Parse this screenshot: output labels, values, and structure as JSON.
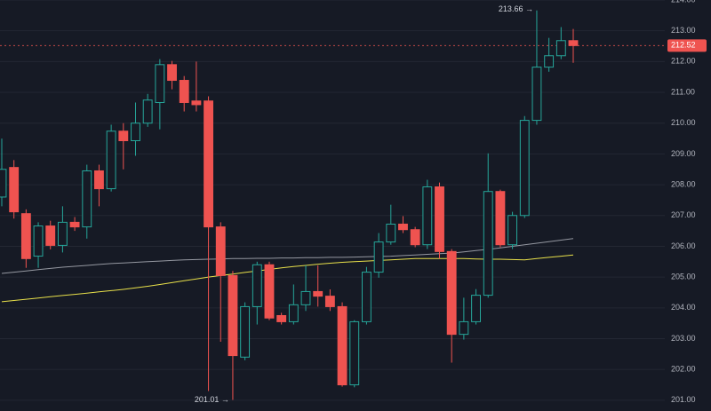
{
  "chart_data": {
    "type": "candlestick",
    "open": [
      207.6,
      208.56,
      207.06,
      205.68,
      206.66,
      206.03,
      206.78,
      206.63,
      208.45,
      207.87,
      209.74,
      209.43,
      210.0,
      210.67,
      211.9,
      211.39,
      210.72,
      210.72,
      206.63,
      205.05,
      202.4,
      204.04,
      205.4,
      203.75,
      203.55,
      204.1,
      204.53,
      204.38,
      204.04,
      201.5,
      203.55,
      205.16,
      206.14,
      206.72,
      206.54,
      206.05,
      207.93,
      205.83,
      203.14,
      203.55,
      204.41,
      207.78,
      206.05,
      207.0,
      210.09,
      211.82,
      212.19,
      212.68
    ],
    "high": [
      209.5,
      208.8,
      207.2,
      206.78,
      206.83,
      207.3,
      206.95,
      208.65,
      208.65,
      209.95,
      210.0,
      210.67,
      210.95,
      212.08,
      212.02,
      211.53,
      212.0,
      210.87,
      206.78,
      205.2,
      204.18,
      205.5,
      205.5,
      203.84,
      204.76,
      205.38,
      205.38,
      204.6,
      204.18,
      203.6,
      205.33,
      206.43,
      207.35,
      206.98,
      206.63,
      208.16,
      208.07,
      205.91,
      204.33,
      204.61,
      209.02,
      207.84,
      207.12,
      210.23,
      213.66,
      212.77,
      213.12,
      213.06
    ],
    "low": [
      207.3,
      206.9,
      205.3,
      205.3,
      205.9,
      205.8,
      206.5,
      206.25,
      207.3,
      207.78,
      208.5,
      208.94,
      209.88,
      209.8,
      211.1,
      210.38,
      210.38,
      201.3,
      202.9,
      201.01,
      202.3,
      203.46,
      203.6,
      203.46,
      203.46,
      203.9,
      204.04,
      203.9,
      201.44,
      201.42,
      203.46,
      204.98,
      206.05,
      206.43,
      205.97,
      205.91,
      205.6,
      202.22,
      202.97,
      203.46,
      204.33,
      205.97,
      205.91,
      206.92,
      209.95,
      211.67,
      212.08,
      211.96
    ],
    "close": [
      208.5,
      207.12,
      205.6,
      206.66,
      206.03,
      206.78,
      206.63,
      208.45,
      207.87,
      209.74,
      209.43,
      210.0,
      210.75,
      211.9,
      211.39,
      210.67,
      210.6,
      206.63,
      205.05,
      202.45,
      204.04,
      205.4,
      203.67,
      203.55,
      204.1,
      204.53,
      204.38,
      204.04,
      201.5,
      203.55,
      205.16,
      206.14,
      206.72,
      206.54,
      206.05,
      207.93,
      205.83,
      203.14,
      203.55,
      204.41,
      207.78,
      206.05,
      207.0,
      210.09,
      211.82,
      212.19,
      212.68,
      212.52
    ],
    "up_color": "#26a69a",
    "down_color": "#ef5350",
    "series": [
      {
        "color": "#9598a1",
        "values": [
          205.12,
          205.16,
          205.2,
          205.24,
          205.28,
          205.32,
          205.35,
          205.38,
          205.41,
          205.44,
          205.46,
          205.48,
          205.5,
          205.52,
          205.54,
          205.56,
          205.57,
          205.58,
          205.59,
          205.6,
          205.6,
          205.61,
          205.61,
          205.62,
          205.62,
          205.63,
          205.63,
          205.64,
          205.64,
          205.65,
          205.66,
          205.67,
          205.68,
          205.7,
          205.72,
          205.74,
          205.76,
          205.78,
          205.82,
          205.86,
          205.9,
          205.95,
          206.0,
          206.05,
          206.1,
          206.15,
          206.2,
          206.25
        ]
      },
      {
        "color": "#e8e04a",
        "values": [
          204.2,
          204.24,
          204.28,
          204.32,
          204.36,
          204.4,
          204.44,
          204.48,
          204.52,
          204.56,
          204.6,
          204.65,
          204.7,
          204.76,
          204.82,
          204.88,
          204.94,
          205.0,
          205.05,
          205.1,
          205.15,
          205.2,
          205.25,
          205.3,
          205.34,
          205.38,
          205.42,
          205.45,
          205.48,
          205.5,
          205.52,
          205.54,
          205.56,
          205.58,
          205.6,
          205.6,
          205.6,
          205.6,
          205.6,
          205.59,
          205.58,
          205.58,
          205.57,
          205.56,
          205.6,
          205.64,
          205.68,
          205.72
        ]
      }
    ],
    "ylim": [
      200.65,
      214.0
    ],
    "yticks": [
      {
        "value": 201,
        "label": "201.00"
      },
      {
        "value": 202,
        "label": "202.00"
      },
      {
        "value": 203,
        "label": "203.00"
      },
      {
        "value": 204,
        "label": "204.00"
      },
      {
        "value": 205,
        "label": "205.00"
      },
      {
        "value": 206,
        "label": "206.00"
      },
      {
        "value": 207,
        "label": "207.00"
      },
      {
        "value": 208,
        "label": "208.00"
      },
      {
        "value": 209,
        "label": "209.00"
      },
      {
        "value": 210,
        "label": "210.00"
      },
      {
        "value": 211,
        "label": "211.00"
      },
      {
        "value": 212,
        "label": "212.00"
      },
      {
        "value": 213,
        "label": "213.00"
      },
      {
        "value": 214,
        "label": "214.00"
      }
    ],
    "grid": true,
    "last_price": {
      "value": 212.52,
      "label": "212.52"
    },
    "annotations": [
      {
        "value": 213.66,
        "label": "213.66 →"
      },
      {
        "value": 201.01,
        "label": "201.01 →"
      }
    ]
  }
}
